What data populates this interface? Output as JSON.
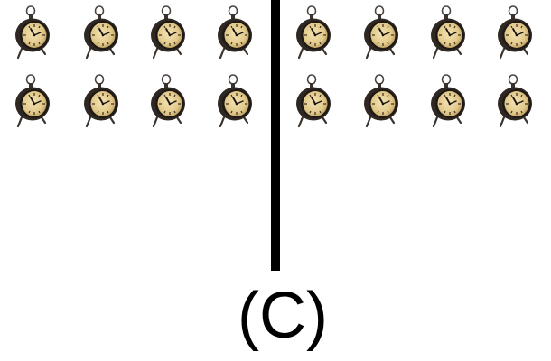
{
  "caption": "(C)",
  "left_group": {
    "clock_count": 8,
    "icon": "alarm-clock-icon"
  },
  "right_group": {
    "clock_count": 8,
    "icon": "alarm-clock-icon"
  },
  "colors": {
    "clock_case": "#2f2722",
    "clock_dial": "#e7d39c",
    "divider": "#000000",
    "background": "#ffffff"
  }
}
